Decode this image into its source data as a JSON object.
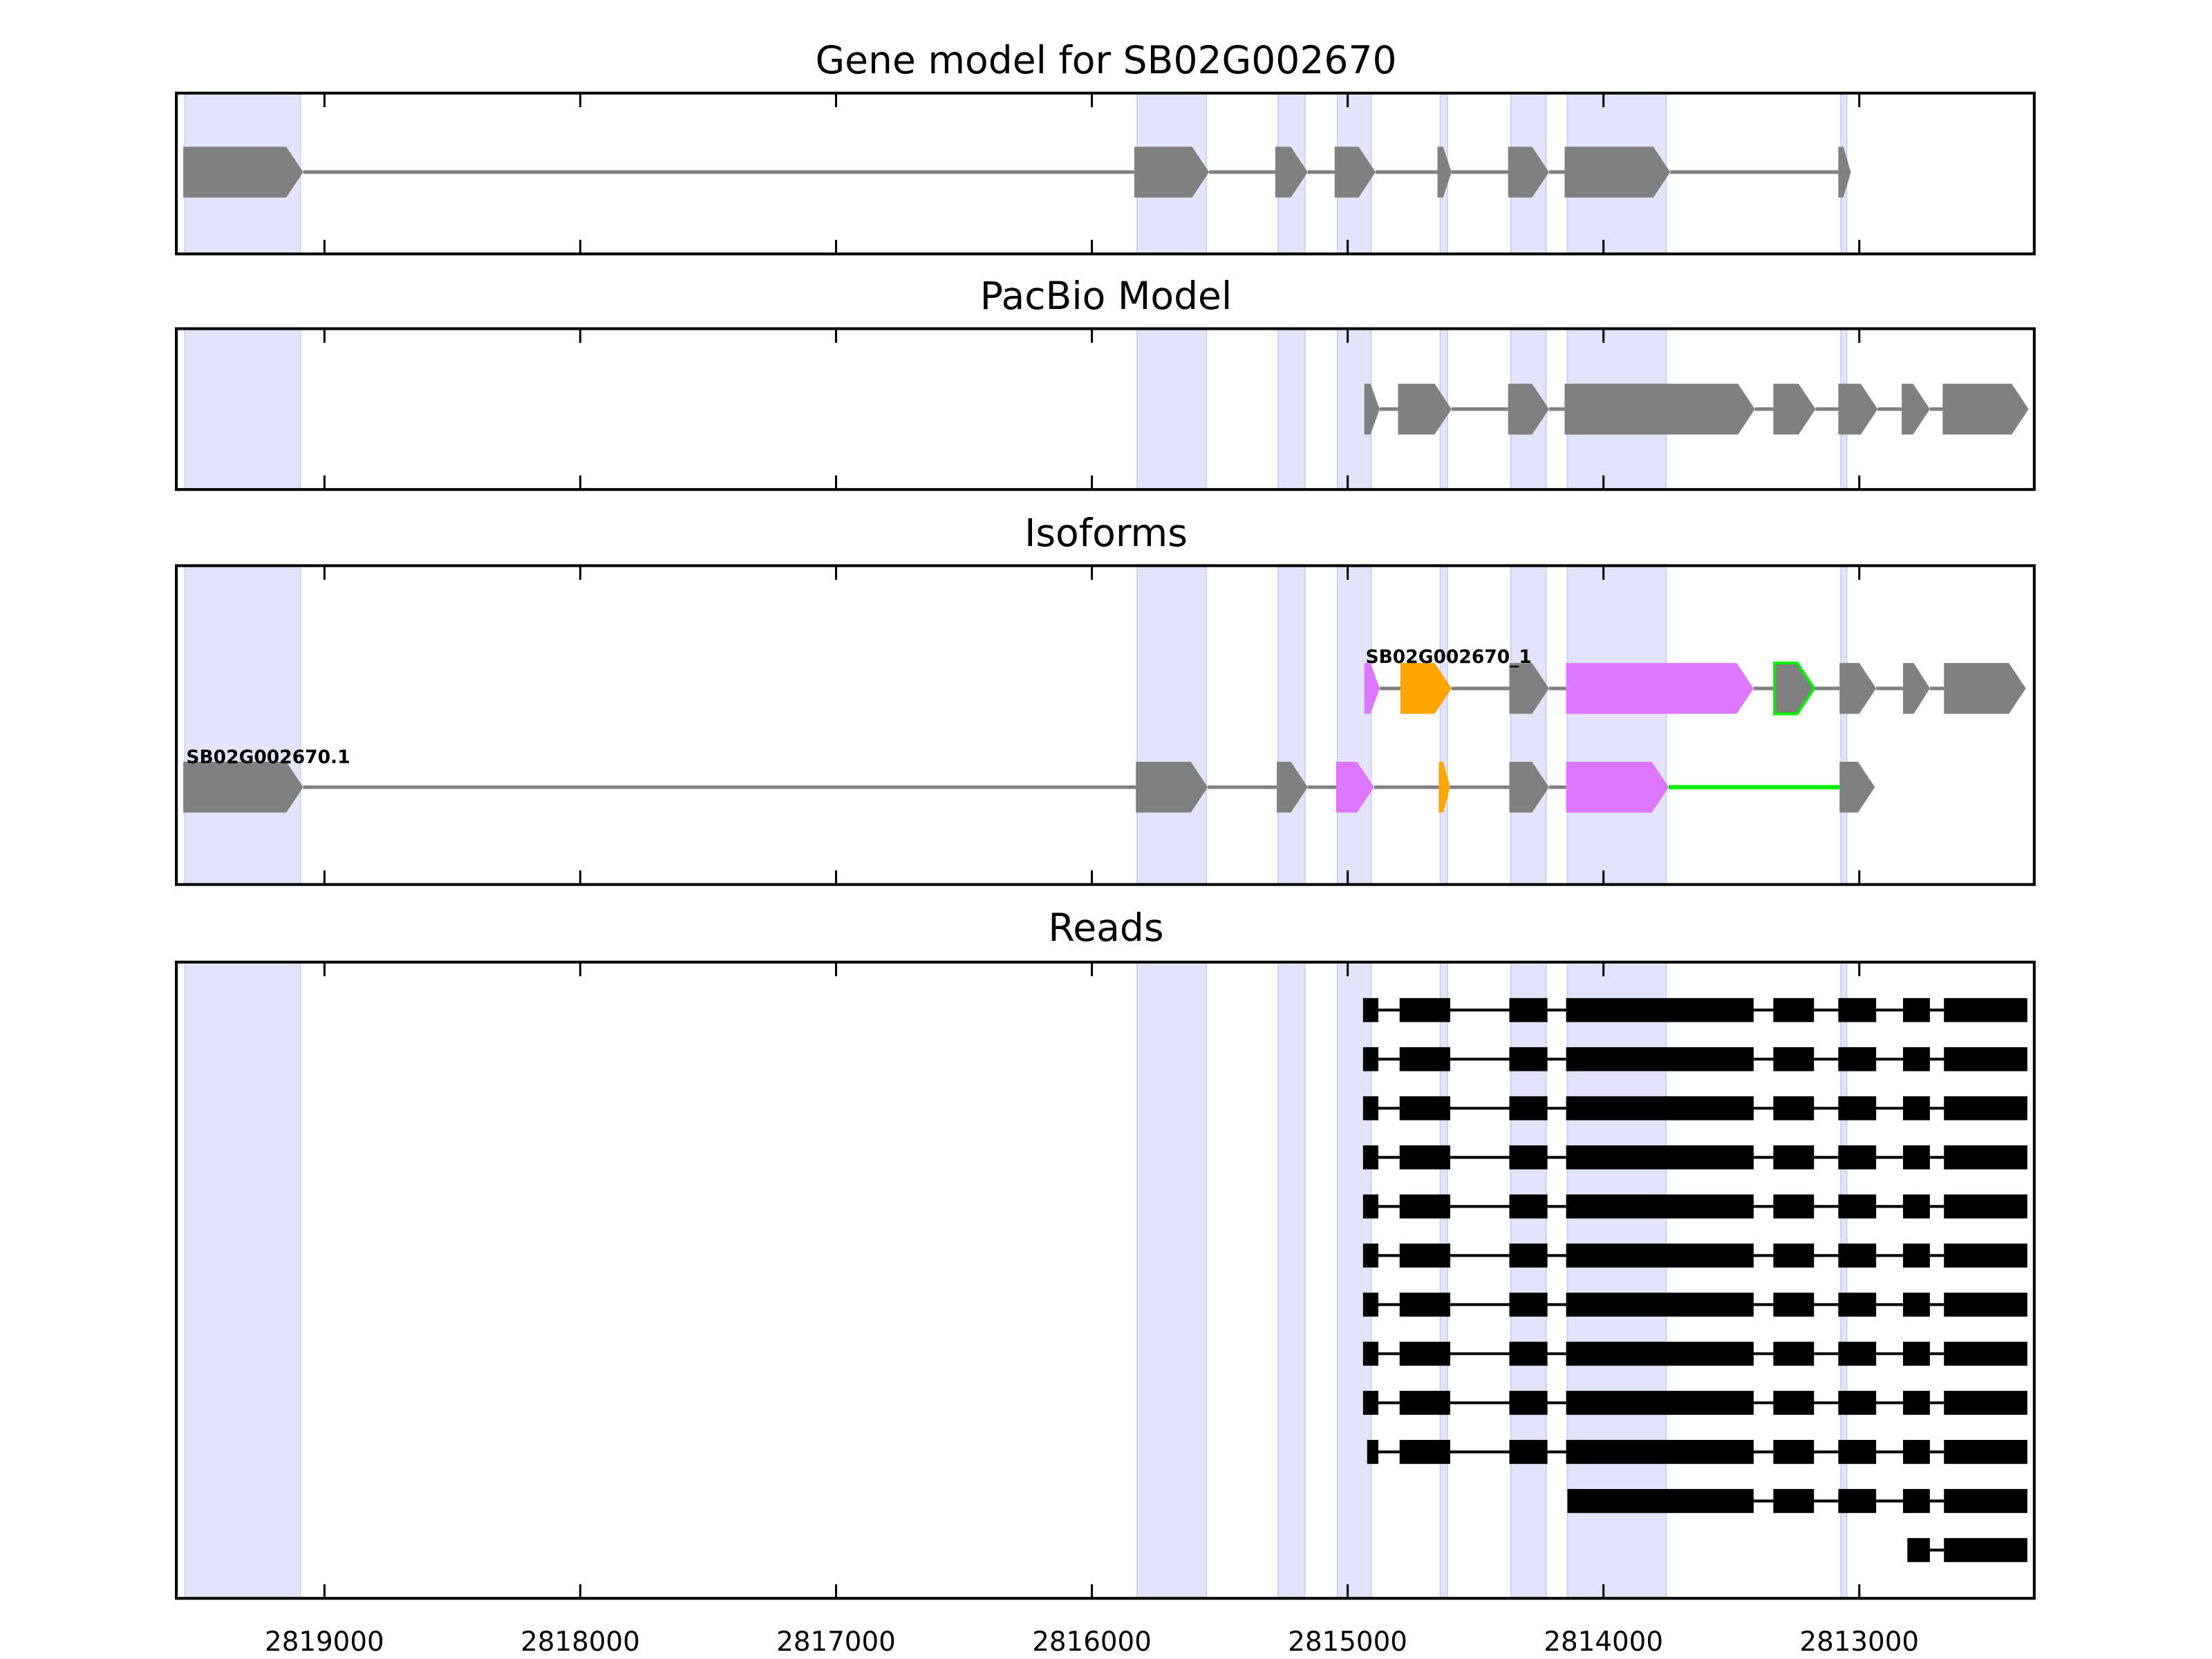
{
  "colors": {
    "exon": "#808080",
    "highlight": "#e3e3fb",
    "highlight_edge": "#d2d2ee",
    "pink": "#dd77ff",
    "orange": "#ffa500",
    "green": "#00ee00",
    "read": "#000000"
  },
  "chart_data": {
    "type": "gene-track",
    "xlim": [
      2819579,
      2812316
    ],
    "x_ticks": [
      2819000,
      2818000,
      2817000,
      2816000,
      2815000,
      2814000,
      2813000
    ],
    "x_tick_labels": [
      "2819000",
      "2818000",
      "2817000",
      "2816000",
      "2815000",
      "2814000",
      "2813000"
    ],
    "highlight_regions": [
      [
        2819546,
        2819094
      ],
      [
        2815823,
        2815553
      ],
      [
        2815272,
        2815167
      ],
      [
        2815040,
        2814908
      ],
      [
        2814638,
        2814610
      ],
      [
        2814362,
        2814224
      ],
      [
        2814141,
        2813755
      ],
      [
        2813072,
        2813049
      ]
    ],
    "panels": [
      {
        "title": "Gene model for SB02G002670",
        "tracks": [
          {
            "exons": [
              [
                2819552,
                2819083,
                "exon"
              ],
              [
                2815834,
                2815542,
                "exon"
              ],
              [
                2815283,
                2815156,
                "exon"
              ],
              [
                2815051,
                2814891,
                "exon"
              ],
              [
                2814649,
                2814594,
                "exon"
              ],
              [
                2814373,
                2814213,
                "exon"
              ],
              [
                2814152,
                2813739,
                "exon"
              ],
              [
                2813082,
                2813033,
                "exon"
              ]
            ]
          }
        ]
      },
      {
        "title": "PacBio Model",
        "tracks": [
          {
            "exons": [
              [
                2814935,
                2814875,
                "exon"
              ],
              [
                2814803,
                2814594,
                "exon"
              ],
              [
                2814373,
                2814213,
                "exon"
              ],
              [
                2814152,
                2813408,
                "exon"
              ],
              [
                2813336,
                2813171,
                "exon"
              ],
              [
                2813082,
                2812928,
                "exon"
              ],
              [
                2812834,
                2812724,
                "exon"
              ],
              [
                2812674,
                2812338,
                "exon"
              ]
            ]
          }
        ]
      },
      {
        "title": "Isoforms",
        "tracks": [
          {
            "label": "SB02G002670_1",
            "exons": [
              [
                2814935,
                2814875,
                "pink"
              ],
              [
                2814794,
                2814594,
                "orange"
              ],
              [
                2814368,
                2814213,
                "exon"
              ],
              [
                2814146,
                2813413,
                "pink"
              ],
              [
                2813331,
                2813177,
                "exon-green-outline"
              ],
              [
                2813077,
                2812934,
                "exon"
              ],
              [
                2812829,
                2812724,
                "exon"
              ],
              [
                2812669,
                2812349,
                "exon"
              ]
            ]
          },
          {
            "label": "SB02G002670.1",
            "exons": [
              [
                2819552,
                2819083,
                "exon"
              ],
              [
                2815828,
                2815547,
                "exon"
              ],
              [
                2815277,
                2815156,
                "exon"
              ],
              [
                2815045,
                2814897,
                "pink"
              ],
              [
                2814644,
                2814600,
                "orange"
              ],
              [
                2814368,
                2814213,
                "exon"
              ],
              [
                2814146,
                2813745,
                "pink"
              ],
              [
                2813077,
                2812939,
                "exon"
              ]
            ],
            "green_intron": [
              2813745,
              2813077
            ]
          }
        ]
      },
      {
        "title": "Reads",
        "reads": [
          [
            [
              2814940,
              2814880
            ],
            [
              2814797,
              2814599
            ],
            [
              2814368,
              2814219
            ],
            [
              2814146,
              2813413
            ],
            [
              2813336,
              2813177
            ],
            [
              2813082,
              2812934
            ],
            [
              2812829,
              2812724
            ],
            [
              2812669,
              2812343
            ]
          ],
          [
            [
              2814940,
              2814880
            ],
            [
              2814797,
              2814599
            ],
            [
              2814368,
              2814219
            ],
            [
              2814146,
              2813413
            ],
            [
              2813336,
              2813177
            ],
            [
              2813082,
              2812934
            ],
            [
              2812829,
              2812724
            ],
            [
              2812669,
              2812343
            ]
          ],
          [
            [
              2814940,
              2814880
            ],
            [
              2814797,
              2814599
            ],
            [
              2814368,
              2814219
            ],
            [
              2814146,
              2813413
            ],
            [
              2813336,
              2813177
            ],
            [
              2813082,
              2812934
            ],
            [
              2812829,
              2812724
            ],
            [
              2812669,
              2812343
            ]
          ],
          [
            [
              2814940,
              2814880
            ],
            [
              2814797,
              2814599
            ],
            [
              2814368,
              2814219
            ],
            [
              2814146,
              2813413
            ],
            [
              2813336,
              2813177
            ],
            [
              2813082,
              2812934
            ],
            [
              2812829,
              2812724
            ],
            [
              2812669,
              2812343
            ]
          ],
          [
            [
              2814940,
              2814880
            ],
            [
              2814797,
              2814599
            ],
            [
              2814368,
              2814219
            ],
            [
              2814146,
              2813413
            ],
            [
              2813336,
              2813177
            ],
            [
              2813082,
              2812934
            ],
            [
              2812829,
              2812724
            ],
            [
              2812669,
              2812343
            ]
          ],
          [
            [
              2814940,
              2814880
            ],
            [
              2814797,
              2814599
            ],
            [
              2814368,
              2814219
            ],
            [
              2814146,
              2813413
            ],
            [
              2813336,
              2813177
            ],
            [
              2813082,
              2812934
            ],
            [
              2812829,
              2812724
            ],
            [
              2812669,
              2812343
            ]
          ],
          [
            [
              2814940,
              2814880
            ],
            [
              2814797,
              2814599
            ],
            [
              2814368,
              2814219
            ],
            [
              2814146,
              2813413
            ],
            [
              2813336,
              2813177
            ],
            [
              2813082,
              2812934
            ],
            [
              2812829,
              2812724
            ],
            [
              2812669,
              2812343
            ]
          ],
          [
            [
              2814940,
              2814880
            ],
            [
              2814797,
              2814599
            ],
            [
              2814368,
              2814219
            ],
            [
              2814146,
              2813413
            ],
            [
              2813336,
              2813177
            ],
            [
              2813082,
              2812934
            ],
            [
              2812829,
              2812724
            ],
            [
              2812669,
              2812343
            ]
          ],
          [
            [
              2814940,
              2814880
            ],
            [
              2814797,
              2814599
            ],
            [
              2814368,
              2814219
            ],
            [
              2814146,
              2813413
            ],
            [
              2813336,
              2813177
            ],
            [
              2813082,
              2812934
            ],
            [
              2812829,
              2812724
            ],
            [
              2812669,
              2812343
            ]
          ],
          [
            [
              2814924,
              2814880
            ],
            [
              2814797,
              2814599
            ],
            [
              2814368,
              2814219
            ],
            [
              2814146,
              2813413
            ],
            [
              2813336,
              2813177
            ],
            [
              2813082,
              2812934
            ],
            [
              2812829,
              2812724
            ],
            [
              2812669,
              2812343
            ]
          ],
          [
            [
              2814141,
              2813413
            ],
            [
              2813336,
              2813177
            ],
            [
              2813082,
              2812934
            ],
            [
              2812829,
              2812724
            ],
            [
              2812669,
              2812343
            ]
          ],
          [
            [
              2812812,
              2812724
            ],
            [
              2812669,
              2812343
            ]
          ]
        ]
      }
    ]
  }
}
